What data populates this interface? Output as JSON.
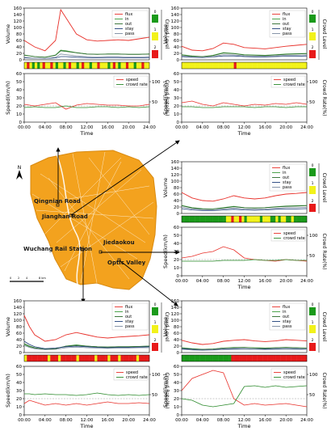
{
  "legend_labels": {
    "flux": "flux",
    "in": "in",
    "out": "out",
    "stay": "stay",
    "pass": "pass",
    "speed": "speed",
    "crowd_rate": "crowd rate"
  },
  "axis_labels": {
    "volume": "Volume",
    "speed": "Speed(km/h)",
    "crowd_rate": "Crowd Rate(%)",
    "crowd_level": "Crowd Level",
    "time": "Time"
  },
  "crowd_level_labels": [
    "0",
    "1",
    "2"
  ],
  "x_ticks": [
    "00:00",
    "04:00",
    "08:00",
    "12:00",
    "16:00",
    "20:00",
    "24:00"
  ],
  "volume_ticks": [
    0,
    20,
    40,
    60,
    80,
    100,
    120,
    140,
    160
  ],
  "speed_ticks": [
    0,
    10,
    20,
    30,
    40,
    50,
    60
  ],
  "rate_ticks": [
    50,
    100
  ],
  "colors": {
    "flux": "#e8302a",
    "in": "#3a9a3a",
    "out": "#2a6a2a",
    "stay": "#1f3f7a",
    "pass": "#7a8aa0",
    "speed": "#e8302a",
    "crowd_rate": "#2a8a2a",
    "level0": "#1a9a1a",
    "level1": "#f2f21a",
    "level2": "#e81a1a",
    "map_fill": "#f3a21e"
  },
  "map": {
    "labels": {
      "north": "N",
      "qingnian": "Qingnian Road",
      "jianghan": "Jianghan Road",
      "wuchang": "Wuchang Rail Station",
      "jiedaokou": "Jiedaokou",
      "optic": "Optic Valley"
    },
    "scale_labels": [
      "0",
      "2",
      "4",
      "8 km"
    ]
  },
  "chart_data": [
    {
      "id": "qingnian",
      "type": "line",
      "x": [
        "00:00",
        "02:00",
        "04:00",
        "06:00",
        "07:00",
        "08:00",
        "10:00",
        "12:00",
        "14:00",
        "16:00",
        "18:00",
        "20:00",
        "22:00",
        "24:00"
      ],
      "series": [
        {
          "name": "flux",
          "values": [
            60,
            40,
            28,
            60,
            155,
            130,
            80,
            62,
            58,
            60,
            62,
            60,
            65,
            70
          ]
        },
        {
          "name": "in",
          "values": [
            14,
            10,
            8,
            15,
            30,
            28,
            22,
            18,
            17,
            18,
            18,
            17,
            17,
            18
          ]
        },
        {
          "name": "out",
          "values": [
            15,
            10,
            8,
            14,
            28,
            26,
            22,
            18,
            17,
            18,
            18,
            17,
            17,
            18
          ]
        },
        {
          "name": "stay",
          "values": [
            6,
            5,
            4,
            6,
            10,
            10,
            8,
            7,
            6,
            7,
            7,
            6,
            6,
            7
          ]
        },
        {
          "name": "pass",
          "values": [
            8,
            5,
            4,
            8,
            18,
            16,
            12,
            10,
            9,
            10,
            10,
            9,
            9,
            10
          ]
        }
      ],
      "crowd_level": [
        "1",
        "2",
        "1",
        "0",
        "1",
        "0",
        "1",
        "2",
        "1",
        "1",
        "2",
        "1",
        "0",
        "1",
        "1",
        "0",
        "1",
        "2",
        "1",
        "1",
        "0",
        "1",
        "2",
        "1",
        "1",
        "0",
        "1",
        "1",
        "2",
        "1",
        "1",
        "1",
        "0",
        "1",
        "2",
        "1",
        "0",
        "1",
        "1",
        "2",
        "1",
        "1",
        "0",
        "1",
        "1",
        "2",
        "1",
        "1"
      ],
      "speed": [
        22,
        20,
        22,
        24,
        20,
        16,
        21,
        23,
        22,
        21,
        21,
        20,
        20,
        22
      ],
      "crowd_rate": [
        18,
        19,
        18,
        18,
        19,
        20,
        18,
        18,
        19,
        19,
        18,
        19,
        18,
        19
      ],
      "ylim_volume": [
        0,
        160
      ],
      "ylim_speed": [
        0,
        60
      ]
    },
    {
      "id": "jianghan",
      "type": "line",
      "x": [
        "00:00",
        "02:00",
        "04:00",
        "06:00",
        "08:00",
        "10:00",
        "12:00",
        "14:00",
        "16:00",
        "18:00",
        "20:00",
        "22:00",
        "24:00"
      ],
      "series": [
        {
          "name": "flux",
          "values": [
            42,
            30,
            28,
            35,
            52,
            48,
            38,
            36,
            34,
            38,
            42,
            45,
            48
          ]
        },
        {
          "name": "in",
          "values": [
            16,
            12,
            10,
            14,
            22,
            20,
            16,
            15,
            14,
            16,
            18,
            19,
            20
          ]
        },
        {
          "name": "out",
          "values": [
            15,
            11,
            10,
            13,
            21,
            19,
            15,
            14,
            13,
            15,
            17,
            18,
            19
          ]
        },
        {
          "name": "stay",
          "values": [
            10,
            8,
            7,
            9,
            12,
            12,
            10,
            9,
            9,
            10,
            11,
            11,
            12
          ]
        },
        {
          "name": "pass",
          "values": [
            12,
            9,
            8,
            10,
            16,
            15,
            12,
            11,
            11,
            12,
            14,
            14,
            15
          ]
        }
      ],
      "crowd_level": [
        "1",
        "1",
        "1",
        "1",
        "1",
        "1",
        "1",
        "1",
        "1",
        "1",
        "1",
        "1",
        "1",
        "1",
        "1",
        "1",
        "1",
        "1",
        "1",
        "1",
        "2",
        "1",
        "1",
        "1",
        "1",
        "1",
        "1",
        "1",
        "1",
        "1",
        "1",
        "1",
        "1",
        "1",
        "1",
        "1",
        "1",
        "1",
        "1",
        "1",
        "1",
        "1",
        "1",
        "1",
        "1",
        "1",
        "1",
        "1"
      ],
      "speed": [
        24,
        26,
        22,
        20,
        24,
        22,
        20,
        22,
        21,
        23,
        22,
        24,
        22
      ],
      "crowd_rate": [
        19,
        19,
        18,
        18,
        19,
        19,
        19,
        18,
        19,
        19,
        18,
        19,
        19
      ],
      "ylim_volume": [
        0,
        160
      ],
      "ylim_speed": [
        0,
        60
      ]
    },
    {
      "id": "jiedaokou",
      "type": "line",
      "x": [
        "00:00",
        "02:00",
        "04:00",
        "06:00",
        "08:00",
        "10:00",
        "12:00",
        "14:00",
        "16:00",
        "18:00",
        "20:00",
        "22:00",
        "24:00"
      ],
      "series": [
        {
          "name": "flux",
          "values": [
            65,
            48,
            40,
            38,
            45,
            55,
            48,
            45,
            48,
            55,
            60,
            62,
            65
          ]
        },
        {
          "name": "in",
          "values": [
            25,
            18,
            15,
            14,
            18,
            22,
            18,
            17,
            18,
            21,
            23,
            24,
            25
          ]
        },
        {
          "name": "out",
          "values": [
            24,
            17,
            14,
            14,
            17,
            21,
            18,
            17,
            18,
            20,
            22,
            23,
            24
          ]
        },
        {
          "name": "stay",
          "values": [
            15,
            11,
            9,
            9,
            11,
            13,
            11,
            10,
            11,
            13,
            14,
            14,
            15
          ]
        },
        {
          "name": "pass",
          "values": [
            20,
            14,
            12,
            11,
            14,
            17,
            14,
            13,
            14,
            16,
            18,
            18,
            19
          ]
        }
      ],
      "crowd_level": [
        "0",
        "0",
        "0",
        "0",
        "0",
        "0",
        "0",
        "0",
        "0",
        "0",
        "0",
        "0",
        "0",
        "0",
        "0",
        "0",
        "0",
        "1",
        "1",
        "2",
        "1",
        "1",
        "2",
        "1",
        "0",
        "1",
        "1",
        "1",
        "1",
        "1",
        "0",
        "1",
        "1",
        "1",
        "0",
        "0",
        "1",
        "0",
        "1",
        "1",
        "0",
        "0",
        "1",
        "0",
        "0",
        "0",
        "0",
        "0"
      ],
      "speed": [
        22,
        24,
        28,
        30,
        36,
        32,
        22,
        20,
        19,
        18,
        20,
        19,
        18
      ],
      "crowd_rate": [
        18,
        18,
        18,
        18,
        19,
        19,
        19,
        20,
        19,
        19,
        20,
        19,
        19
      ],
      "ylim_volume": [
        0,
        160
      ],
      "ylim_speed": [
        0,
        60
      ]
    },
    {
      "id": "wuchang",
      "type": "line",
      "x": [
        "00:00",
        "01:00",
        "02:00",
        "04:00",
        "06:00",
        "08:00",
        "10:00",
        "12:00",
        "14:00",
        "16:00",
        "18:00",
        "20:00",
        "22:00",
        "24:00"
      ],
      "series": [
        {
          "name": "flux",
          "values": [
            115,
            80,
            55,
            35,
            40,
            55,
            62,
            55,
            48,
            45,
            48,
            50,
            52,
            55
          ]
        },
        {
          "name": "in",
          "values": [
            25,
            18,
            14,
            10,
            12,
            20,
            24,
            20,
            18,
            17,
            18,
            18,
            19,
            20
          ]
        },
        {
          "name": "out",
          "values": [
            28,
            20,
            15,
            10,
            12,
            20,
            22,
            20,
            18,
            17,
            18,
            18,
            19,
            20
          ]
        },
        {
          "name": "stay",
          "values": [
            35,
            25,
            18,
            12,
            14,
            18,
            20,
            18,
            16,
            15,
            16,
            16,
            17,
            18
          ]
        },
        {
          "name": "pass",
          "values": [
            22,
            16,
            12,
            9,
            10,
            15,
            17,
            15,
            14,
            13,
            14,
            14,
            15,
            15
          ]
        }
      ],
      "crowd_level": [
        "1",
        "2",
        "2",
        "2",
        "2",
        "2",
        "2",
        "2",
        "2",
        "1",
        "2",
        "2",
        "2",
        "1",
        "2",
        "2",
        "2",
        "2",
        "2",
        "2",
        "1",
        "2",
        "2",
        "2",
        "2",
        "2",
        "2",
        "1",
        "2",
        "2",
        "2",
        "2",
        "1",
        "2",
        "2",
        "2",
        "1",
        "2",
        "2",
        "2",
        "2",
        "2",
        "2",
        "1",
        "2",
        "2",
        "2",
        "2"
      ],
      "speed": [
        14,
        18,
        16,
        12,
        14,
        12,
        14,
        12,
        14,
        16,
        14,
        14,
        15,
        14
      ],
      "crowd_rate": [
        26,
        26,
        25,
        26,
        25,
        25,
        24,
        25,
        27,
        25,
        24,
        25,
        24,
        25
      ],
      "ylim_volume": [
        0,
        160
      ],
      "ylim_speed": [
        0,
        60
      ]
    },
    {
      "id": "optic",
      "type": "line",
      "x": [
        "00:00",
        "02:00",
        "04:00",
        "06:00",
        "08:00",
        "10:00",
        "12:00",
        "14:00",
        "16:00",
        "18:00",
        "20:00",
        "22:00",
        "24:00"
      ],
      "series": [
        {
          "name": "flux",
          "values": [
            38,
            30,
            25,
            28,
            35,
            38,
            40,
            36,
            34,
            36,
            40,
            38,
            36
          ]
        },
        {
          "name": "in",
          "values": [
            15,
            12,
            10,
            11,
            14,
            16,
            16,
            15,
            14,
            15,
            16,
            15,
            14
          ]
        },
        {
          "name": "out",
          "values": [
            14,
            11,
            10,
            11,
            14,
            15,
            16,
            14,
            13,
            15,
            16,
            15,
            14
          ]
        },
        {
          "name": "stay",
          "values": [
            12,
            10,
            8,
            9,
            11,
            12,
            12,
            11,
            11,
            12,
            12,
            12,
            11
          ]
        },
        {
          "name": "pass",
          "values": [
            10,
            8,
            7,
            8,
            9,
            10,
            11,
            10,
            9,
            10,
            11,
            10,
            10
          ]
        }
      ],
      "crowd_level": [
        "0",
        "0",
        "0",
        "0",
        "0",
        "0",
        "0",
        "0",
        "0",
        "0",
        "0",
        "0",
        "0",
        "0",
        "0",
        "0",
        "0",
        "0",
        "0",
        "2",
        "2",
        "2",
        "2",
        "2",
        "2",
        "2",
        "2",
        "2",
        "2",
        "2",
        "2",
        "2",
        "2",
        "2",
        "2",
        "2",
        "2",
        "2",
        "2",
        "2",
        "2",
        "2",
        "2",
        "2",
        "2",
        "2",
        "2",
        "2"
      ],
      "speed": [
        30,
        45,
        50,
        55,
        52,
        20,
        12,
        14,
        12,
        13,
        14,
        12,
        10
      ],
      "crowd_rate": [
        20,
        18,
        12,
        10,
        12,
        14,
        35,
        36,
        34,
        36,
        34,
        35,
        36
      ],
      "ylim_volume": [
        0,
        160
      ],
      "ylim_speed": [
        0,
        60
      ]
    }
  ]
}
